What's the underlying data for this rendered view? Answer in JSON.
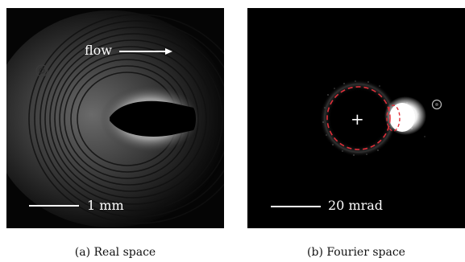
{
  "panels": {
    "real": {
      "flow_label": "flow",
      "scale_label": "1 mm",
      "caption": "(a) Real space"
    },
    "fourier": {
      "scale_label": "20 mrad",
      "center_marker": "+",
      "caption": "(b) Fourier space"
    }
  },
  "colors": {
    "background": "#000000",
    "dashed_circle": "#e0303a",
    "text": "#ffffff"
  }
}
